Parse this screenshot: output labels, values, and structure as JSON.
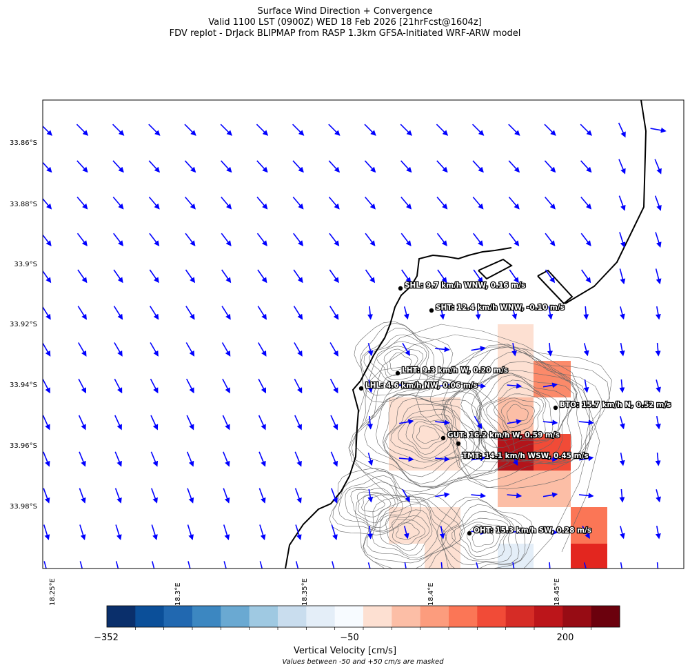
{
  "title": {
    "line1": "Surface Wind Direction + Convergence",
    "line2": "Valid 1100 LST (0900Z) WED 18 Feb 2026 [21hrFcst@1604z]",
    "line3": "FDV replot - DrJack BLIPMAP from RASP 1.3km GFSA-Initiated WRF-ARW model"
  },
  "axes": {
    "y_ticks": [
      "33.86°S",
      "33.88°S",
      "33.9°S",
      "33.92°S",
      "33.94°S",
      "33.96°S",
      "33.98°S"
    ],
    "x_ticks": [
      "18.25°E",
      "18.3°E",
      "18.35°E",
      "18.4°E",
      "18.45°E"
    ]
  },
  "colorbar": {
    "label": "Vertical Velocity [cm/s]",
    "note": "Values between -50 and +50 cm/s are masked",
    "tick_labels": [
      "−352",
      "−50",
      "200"
    ],
    "colors": [
      "#0a2f6b",
      "#0b4f99",
      "#2168b0",
      "#3c87c1",
      "#6aa9d2",
      "#9fc9e2",
      "#c9ddee",
      "#e4eef8",
      "#f7fbff",
      "#fde0d2",
      "#fcbea6",
      "#fc9c7d",
      "#fb7656",
      "#f14b37",
      "#d62c26",
      "#bc151a",
      "#970c14",
      "#6b010d"
    ]
  },
  "stations": [
    {
      "code": "SHL",
      "label": "SHL: 9.7 km/h WNW, 0.16 m/s"
    },
    {
      "code": "SHT",
      "label": "SHT: 12.4 km/h WNW, -0.10 m/s"
    },
    {
      "code": "LHT",
      "label": "LHT: 9.3 km/h W, 0.20 m/s"
    },
    {
      "code": "LHL",
      "label": "LHL: 4.6 km/h NW, 0.06 m/s"
    },
    {
      "code": "BTO",
      "label": "BTO: 15.7 km/h N, 0.52 m/s"
    },
    {
      "code": "GUT",
      "label": "GUT: 16.2 km/h W, 0.59 m/s"
    },
    {
      "code": "TMT",
      "label": "TMT: 14.1 km/h WSW, 0.45 m/s"
    },
    {
      "code": "OHT",
      "label": "OHT: 15.3 km/h SW, 0.28 m/s"
    }
  ],
  "colors": {
    "wind_vector": "#0000ff",
    "coastline": "#000000",
    "contour": "#666666"
  }
}
